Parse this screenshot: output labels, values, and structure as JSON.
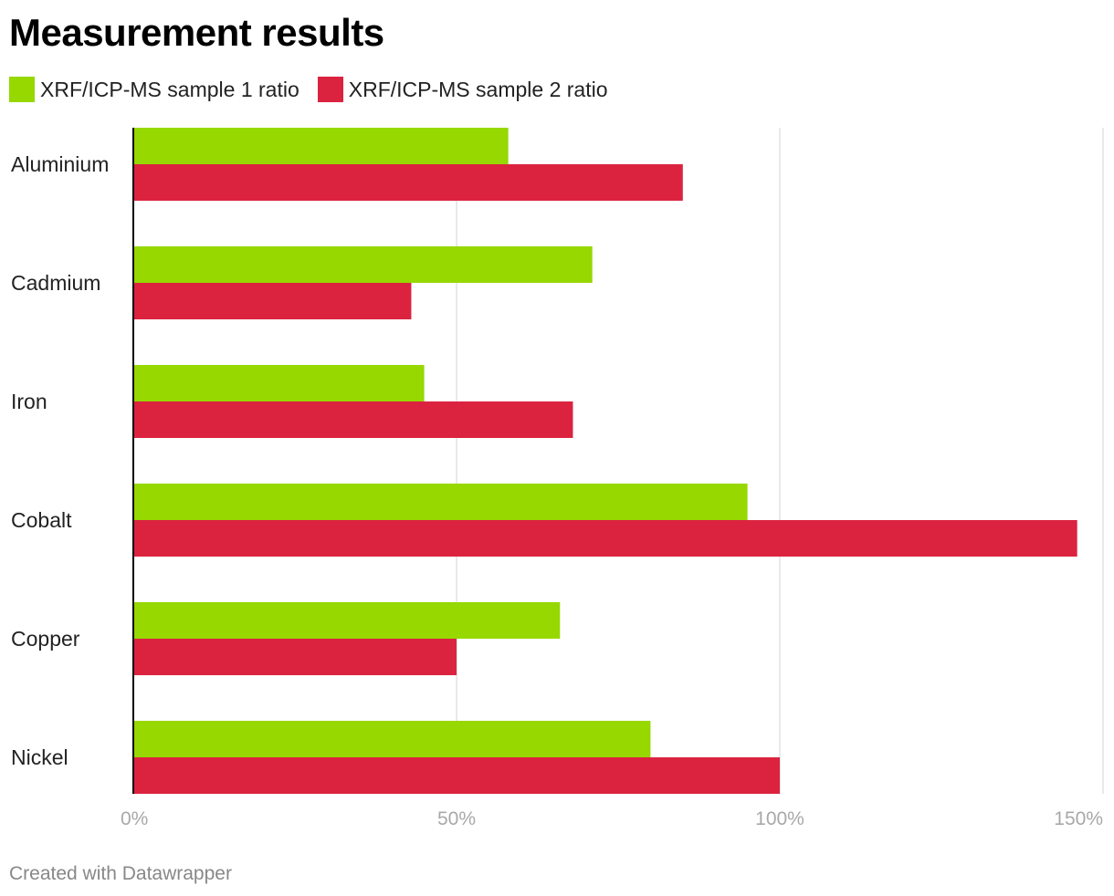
{
  "chart_data": {
    "type": "bar",
    "orientation": "horizontal",
    "title": "Measurement results",
    "categories": [
      "Aluminium",
      "Cadmium",
      "Iron",
      "Cobalt",
      "Copper",
      "Nickel"
    ],
    "series": [
      {
        "name": "XRF/ICP-MS sample 1 ratio",
        "color": "#96d800",
        "values": [
          58,
          71,
          45,
          95,
          66,
          80
        ]
      },
      {
        "name": "XRF/ICP-MS sample 2 ratio",
        "color": "#db2340",
        "values": [
          85,
          43,
          68,
          146,
          50,
          100
        ]
      }
    ],
    "xlim": [
      0,
      150
    ],
    "xticks": [
      0,
      50,
      100,
      150
    ],
    "xtick_labels": [
      "0%",
      "50%",
      "100%",
      "150%"
    ],
    "xlabel": "",
    "ylabel": "",
    "grid": true,
    "legend_position": "top-left"
  },
  "footer": "Created with Datawrapper"
}
